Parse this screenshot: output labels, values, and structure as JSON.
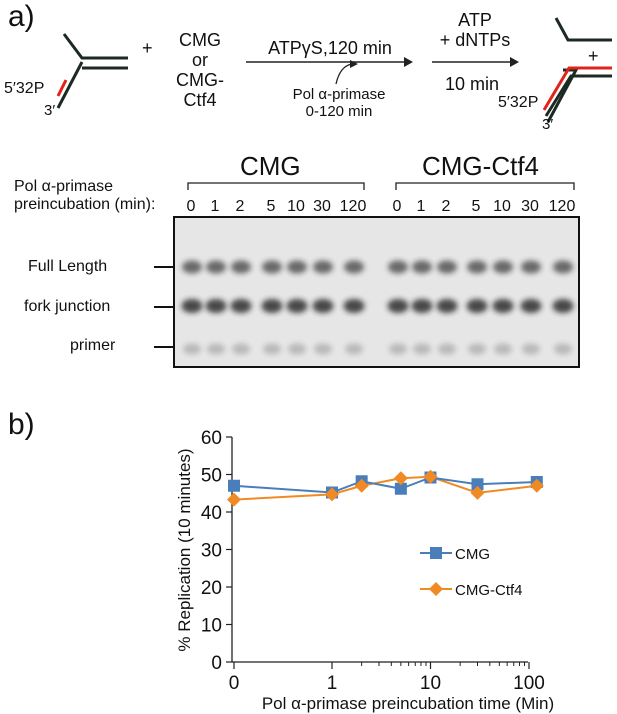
{
  "figure": {
    "panel_a_label": "a)",
    "panel_b_label": "b)",
    "scheme": {
      "label_5p32p": "5′32P",
      "label_3p": "3′",
      "plus": "+",
      "protein_options": [
        "CMG",
        "or",
        "CMG-Ctf4"
      ],
      "step1_above": "ATPγS,120 min",
      "step1_below": [
        "Pol α-primase",
        "0-120 min"
      ],
      "step2_above": [
        "ATP",
        "+ dNTPs"
      ],
      "step2_below": "10 min",
      "product_label_5p32p": "5′32P",
      "product_label_3p": "3′",
      "product_plus": "+"
    },
    "gel": {
      "group_labels": [
        "CMG",
        "CMG-Ctf4"
      ],
      "row_header": [
        "Pol α-primase",
        "preincubation (min):"
      ],
      "lanes": [
        "0",
        "1",
        "2",
        "5",
        "10",
        "30",
        "120",
        "0",
        "1",
        "2",
        "5",
        "10",
        "30",
        "120"
      ],
      "band_labels": [
        "Full Length",
        "fork junction",
        "primer"
      ]
    },
    "colors": {
      "dna_strand": "#1c2a22",
      "label_strand": "#e0241b",
      "cmg_series": "#4a7ebb",
      "ctf4_series": "#f08a24"
    }
  },
  "chart_data": {
    "type": "line",
    "xscale": "log",
    "xlabel": "Pol α-primase preincubation time (Min)",
    "ylabel": "% Replication (10 minutes)",
    "ylim": [
      0,
      60
    ],
    "yticks": [
      "0",
      "10",
      "20",
      "30",
      "40",
      "50",
      "60"
    ],
    "xticks": [
      "0",
      "1",
      "10",
      "100"
    ],
    "legend_position": "center-right",
    "series": [
      {
        "name": "CMG",
        "marker": "square",
        "color": "#4a7ebb",
        "x": [
          0,
          1,
          2,
          5,
          10,
          30,
          120
        ],
        "y": [
          47,
          45.2,
          48.2,
          46.2,
          49.2,
          47.4,
          48
        ]
      },
      {
        "name": "CMG-Ctf4",
        "marker": "diamond",
        "color": "#f08a24",
        "x": [
          0,
          1,
          2,
          5,
          10,
          30,
          120
        ],
        "y": [
          43.3,
          44.7,
          47,
          49,
          49.4,
          45.1,
          47
        ]
      }
    ]
  }
}
